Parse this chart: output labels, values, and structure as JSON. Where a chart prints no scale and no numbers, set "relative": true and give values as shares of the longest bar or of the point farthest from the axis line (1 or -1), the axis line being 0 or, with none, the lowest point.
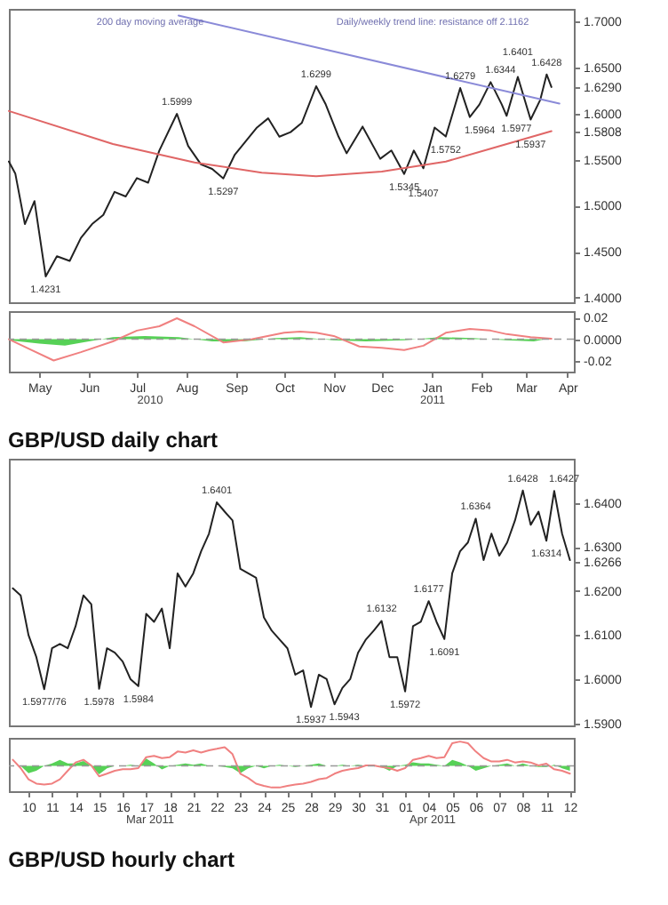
{
  "chart_data": [
    {
      "type": "line",
      "xlim": [
        "2010-04-26",
        "2011-04-14"
      ],
      "ylim": [
        1.395,
        1.714
      ],
      "tick_labels": "y",
      "grid": false,
      "marker": "none",
      "yticks": [
        {
          "value": 1.4,
          "label": "1.4000"
        },
        {
          "value": 1.45,
          "label": "1.4500"
        },
        {
          "value": 1.5,
          "label": "1.5000"
        },
        {
          "value": 1.55,
          "label": "1.5500"
        },
        {
          "value": 1.6,
          "label": "1.6000"
        },
        {
          "value": 1.65,
          "label": "1.6500"
        },
        {
          "value": 1.7,
          "label": "1.7000"
        },
        {
          "value": 1.629,
          "label": "1.6290"
        },
        {
          "value": 1.5808,
          "label": "1.5808"
        }
      ],
      "series": [
        {
          "color": "#222222",
          "x": [
            "2010-04-26",
            "2010-04-30",
            "2010-05-06",
            "2010-05-12",
            "2010-05-19",
            "2010-05-26",
            "2010-06-03",
            "2010-06-10",
            "2010-06-17",
            "2010-06-24",
            "2010-07-01",
            "2010-07-08",
            "2010-07-15",
            "2010-07-22",
            "2010-07-29",
            "2010-08-09",
            "2010-08-16",
            "2010-08-24",
            "2010-08-31",
            "2010-09-07",
            "2010-09-14",
            "2010-09-21",
            "2010-09-28",
            "2010-10-05",
            "2010-10-12",
            "2010-10-19",
            "2010-10-26",
            "2010-11-04",
            "2010-11-10",
            "2010-11-18",
            "2010-11-23",
            "2010-12-03",
            "2010-12-14",
            "2010-12-21",
            "2010-12-29",
            "2011-01-04",
            "2011-01-10",
            "2011-01-17",
            "2011-01-24",
            "2011-02-02",
            "2011-02-08",
            "2011-02-14",
            "2011-02-21",
            "2011-02-28",
            "2011-03-03",
            "2011-03-10",
            "2011-03-18",
            "2011-03-24",
            "2011-03-28",
            "2011-03-31"
          ],
          "values": [
            1.548,
            1.535,
            1.48,
            1.505,
            1.4231,
            1.445,
            1.44,
            1.465,
            1.48,
            1.49,
            1.515,
            1.51,
            1.53,
            1.525,
            1.56,
            1.5999,
            1.565,
            1.545,
            1.54,
            1.5297,
            1.555,
            1.57,
            1.585,
            1.595,
            1.575,
            1.58,
            1.59,
            1.6299,
            1.61,
            1.575,
            1.557,
            1.586,
            1.551,
            1.56,
            1.5345,
            1.56,
            1.5407,
            1.585,
            1.5752,
            1.6279,
            1.5964,
            1.61,
            1.6344,
            1.61,
            1.5977,
            1.6401,
            1.5937,
            1.615,
            1.6428,
            1.629
          ],
          "value_labels": [
            null,
            null,
            null,
            null,
            "1.4231",
            null,
            null,
            null,
            null,
            null,
            null,
            null,
            null,
            null,
            null,
            "1.5999",
            null,
            null,
            null,
            "1.5297",
            null,
            null,
            null,
            null,
            null,
            null,
            null,
            "1.6299",
            null,
            null,
            null,
            null,
            null,
            null,
            "1.5345",
            null,
            "1.5407",
            null,
            "1.5752",
            "1.6279",
            "1.5964",
            null,
            "1.6344",
            null,
            "1.5977",
            "1.6401",
            "1.5937",
            null,
            "1.6428",
            null
          ]
        },
        {
          "color": "#8a8ad8",
          "x": [
            "2010-08-10",
            "2011-04-05"
          ],
          "values": [
            1.7068,
            1.611
          ]
        },
        {
          "color": "#e06666",
          "x": [
            "2010-04-26",
            "2010-06-30",
            "2010-08-20",
            "2010-10-01",
            "2010-11-04",
            "2010-12-15",
            "2011-01-24",
            "2011-02-21",
            "2011-03-31"
          ],
          "values": [
            1.603,
            1.567,
            1.547,
            1.536,
            1.532,
            1.537,
            1.548,
            1.562,
            1.581
          ]
        }
      ],
      "annotations": [
        "200 day moving average",
        "Daily/weekly trend line: resistance off 2.1162"
      ]
    },
    {
      "type": "line",
      "title": "GBP/USD daily chart",
      "xlim": [
        "2010-04-26",
        "2011-04-14"
      ],
      "ylim": [
        -0.03,
        0.026
      ],
      "grid": false,
      "marker": "none",
      "yticks": [
        {
          "value": 0.02,
          "label": "0.02"
        },
        {
          "value": 0,
          "label": "0.0000"
        },
        {
          "value": -0.02,
          "label": "-0.02"
        }
      ],
      "xticks": [
        {
          "value": "2010-05-15",
          "label": "May"
        },
        {
          "value": "2010-06-15",
          "label": "Jun"
        },
        {
          "value": "2010-07-15",
          "label": "Jul"
        },
        {
          "value": "2010-08-15",
          "label": "Aug"
        },
        {
          "value": "2010-09-15",
          "label": "Sep"
        },
        {
          "value": "2010-10-15",
          "label": "Oct"
        },
        {
          "value": "2010-11-15",
          "label": "Nov"
        },
        {
          "value": "2010-12-15",
          "label": "Dec"
        },
        {
          "value": "2011-01-15",
          "label": "Jan"
        },
        {
          "value": "2011-02-15",
          "label": "Feb"
        },
        {
          "value": "2011-03-15",
          "label": "Mar"
        },
        {
          "value": "2011-04-10",
          "label": "Apr"
        }
      ],
      "ref_lines": [
        {
          "axis": "y",
          "value": 0,
          "color": "#999999",
          "line_style": "dashed"
        }
      ],
      "series": [
        {
          "type": "area",
          "color": "#44cc44",
          "x": [
            "2010-04-26",
            "2010-05-15",
            "2010-05-31",
            "2010-06-15",
            "2010-06-30",
            "2010-07-20",
            "2010-08-10",
            "2010-08-31",
            "2010-09-20",
            "2010-10-10",
            "2010-10-25",
            "2010-11-15",
            "2010-12-05",
            "2010-12-29",
            "2011-01-20",
            "2011-02-10",
            "2011-03-03",
            "2011-03-20",
            "2011-03-31"
          ],
          "values": [
            -0.001,
            -0.004,
            -0.006,
            -0.002,
            0.002,
            0.003,
            0.002,
            -0.002,
            -0.002,
            0.001,
            0.002,
            -0.001,
            -0.002,
            -0.001,
            0.002,
            0.001,
            -0.001,
            -0.002,
            0.001
          ]
        },
        {
          "color": "#f08080",
          "x": [
            "2010-04-26",
            "2010-05-10",
            "2010-05-24",
            "2010-06-10",
            "2010-06-30",
            "2010-07-15",
            "2010-07-29",
            "2010-08-09",
            "2010-08-20",
            "2010-09-07",
            "2010-09-25",
            "2010-10-15",
            "2010-10-25",
            "2010-11-04",
            "2010-11-15",
            "2010-12-01",
            "2010-12-15",
            "2010-12-29",
            "2011-01-10",
            "2011-01-24",
            "2011-02-08",
            "2011-02-21",
            "2011-03-03",
            "2011-03-18",
            "2011-03-31"
          ],
          "values": [
            0.0,
            -0.01,
            -0.0197,
            -0.012,
            -0.002,
            0.008,
            0.012,
            0.0194,
            0.012,
            -0.003,
            0.0,
            0.006,
            0.007,
            0.006,
            0.003,
            -0.0067,
            -0.008,
            -0.01,
            -0.006,
            0.006,
            0.0096,
            0.008,
            0.0047,
            0.002,
            0.0005
          ]
        }
      ],
      "annotations": [
        "2010",
        "2011"
      ]
    },
    {
      "type": "line",
      "tick_labels": "y",
      "ylim": [
        1.5895,
        1.65
      ],
      "grid": false,
      "marker": "none",
      "categories": [
        null,
        null,
        "10",
        null,
        null,
        "11",
        null,
        null,
        "14",
        null,
        null,
        "15",
        null,
        null,
        "16",
        null,
        null,
        "17",
        null,
        null,
        "18",
        null,
        null,
        "21",
        null,
        null,
        "22",
        null,
        null,
        "23",
        null,
        null,
        "24",
        null,
        null,
        "25",
        null,
        null,
        "28",
        null,
        null,
        "29",
        null,
        null,
        "30",
        null,
        null,
        "31",
        null,
        null,
        "01",
        null,
        null,
        "04",
        null,
        null,
        "05",
        null,
        null,
        "06",
        null,
        null,
        "07",
        null,
        null,
        "08",
        null,
        null,
        "11",
        null,
        null,
        "12"
      ],
      "yticks": [
        {
          "value": 1.59,
          "label": "1.5900"
        },
        {
          "value": 1.6,
          "label": "1.6000"
        },
        {
          "value": 1.61,
          "label": "1.6100"
        },
        {
          "value": 1.62,
          "label": "1.6200"
        },
        {
          "value": 1.63,
          "label": "1.6300"
        },
        {
          "value": 1.64,
          "label": "1.6400"
        },
        {
          "value": 1.6266,
          "label": "1.6266"
        }
      ],
      "series": [
        {
          "color": "#222222",
          "values": [
            1.6206,
            1.619,
            1.61,
            1.605,
            1.5977,
            1.607,
            1.608,
            1.607,
            1.612,
            1.619,
            1.617,
            1.5978,
            1.607,
            1.606,
            1.604,
            1.6,
            1.5984,
            1.6148,
            1.613,
            1.616,
            1.607,
            1.624,
            1.621,
            1.624,
            1.629,
            1.633,
            1.6401,
            1.638,
            1.636,
            1.625,
            1.624,
            1.623,
            1.614,
            1.611,
            1.609,
            1.607,
            1.601,
            1.602,
            1.5937,
            1.601,
            1.6,
            1.5943,
            1.598,
            1.6,
            1.606,
            1.609,
            1.611,
            1.6132,
            1.605,
            1.605,
            1.5972,
            1.612,
            1.613,
            1.6177,
            1.613,
            1.6091,
            1.624,
            1.629,
            1.631,
            1.6364,
            1.627,
            1.633,
            1.628,
            1.631,
            1.636,
            1.6428,
            1.635,
            1.638,
            1.6314,
            1.6427,
            1.633,
            1.627
          ],
          "value_labels": [
            null,
            null,
            null,
            null,
            "1.5977/76",
            null,
            null,
            null,
            null,
            null,
            null,
            "1.5978",
            null,
            null,
            null,
            null,
            "1.5984",
            null,
            null,
            null,
            null,
            null,
            null,
            null,
            null,
            null,
            "1.6401",
            null,
            null,
            null,
            null,
            null,
            null,
            null,
            null,
            null,
            null,
            null,
            "1.5937",
            null,
            null,
            "1.5943",
            null,
            null,
            null,
            null,
            null,
            "1.6132",
            null,
            null,
            "1.5972",
            null,
            null,
            "1.6177",
            null,
            "1.6091",
            null,
            null,
            null,
            "1.6364",
            null,
            null,
            null,
            null,
            null,
            "1.6428",
            null,
            null,
            "1.6314",
            "1.6427",
            null,
            null
          ]
        }
      ]
    },
    {
      "type": "line",
      "title": "GBP/USD hourly chart",
      "relative": true,
      "grid": false,
      "marker": "none",
      "categories": [
        null,
        null,
        "10",
        null,
        null,
        "11",
        null,
        null,
        "14",
        null,
        null,
        "15",
        null,
        null,
        "16",
        null,
        null,
        "17",
        null,
        null,
        "18",
        null,
        null,
        "21",
        null,
        null,
        "22",
        null,
        null,
        "23",
        null,
        null,
        "24",
        null,
        null,
        "25",
        null,
        null,
        "28",
        null,
        null,
        "29",
        null,
        null,
        "30",
        null,
        null,
        "31",
        null,
        null,
        "01",
        null,
        null,
        "04",
        null,
        null,
        "05",
        null,
        null,
        "06",
        null,
        null,
        "07",
        null,
        null,
        "08",
        null,
        null,
        "11",
        null,
        null,
        "12"
      ],
      "ref_lines": [
        {
          "axis": "y",
          "value": 0,
          "color": "#999999",
          "line_style": "dashed"
        }
      ],
      "series": [
        {
          "type": "area",
          "color": "#44cc44",
          "values": [
            0,
            0,
            -0.3,
            -0.2,
            0,
            0.1,
            0.25,
            0.1,
            0.1,
            0.2,
            0,
            -0.35,
            -0.1,
            0,
            0,
            0.05,
            0,
            0.3,
            0.1,
            -0.15,
            0,
            0.05,
            0.1,
            0.05,
            0.1,
            0,
            0,
            -0.05,
            -0.1,
            -0.3,
            -0.1,
            0,
            -0.1,
            0,
            0.05,
            0,
            -0.05,
            0,
            0.05,
            0.1,
            0,
            0,
            0.05,
            0,
            0.05,
            0,
            0,
            -0.05,
            -0.2,
            0,
            0.05,
            0.15,
            0.1,
            0.1,
            0.05,
            0,
            0.25,
            0.15,
            0,
            -0.2,
            -0.1,
            0,
            0.05,
            0.1,
            0,
            0.1,
            0,
            -0.05,
            -0.05,
            0.05,
            -0.1,
            -0.2
          ]
        },
        {
          "color": "#f08080",
          "values": [
            0.25,
            -0.09,
            -0.55,
            -0.73,
            -0.77,
            -0.73,
            -0.55,
            -0.2,
            0.14,
            0.25,
            0.02,
            -0.43,
            -0.32,
            -0.2,
            -0.14,
            -0.14,
            -0.09,
            0.36,
            0.41,
            0.32,
            0.36,
            0.59,
            0.55,
            0.64,
            0.55,
            0.64,
            0.7,
            0.77,
            0.48,
            -0.32,
            -0.5,
            -0.73,
            -0.82,
            -0.89,
            -0.89,
            -0.82,
            -0.77,
            -0.73,
            -0.66,
            -0.55,
            -0.5,
            -0.32,
            -0.2,
            -0.14,
            -0.09,
            0.02,
            0.02,
            -0.05,
            -0.09,
            -0.2,
            -0.09,
            0.25,
            0.32,
            0.41,
            0.32,
            0.36,
            0.93,
            1,
            0.93,
            0.59,
            0.32,
            0.18,
            0.18,
            0.25,
            0.14,
            0.18,
            0.14,
            0.02,
            0.09,
            -0.14,
            -0.2,
            -0.32
          ]
        }
      ],
      "annotations": [
        "Mar 2011",
        "Apr 2011"
      ]
    }
  ]
}
